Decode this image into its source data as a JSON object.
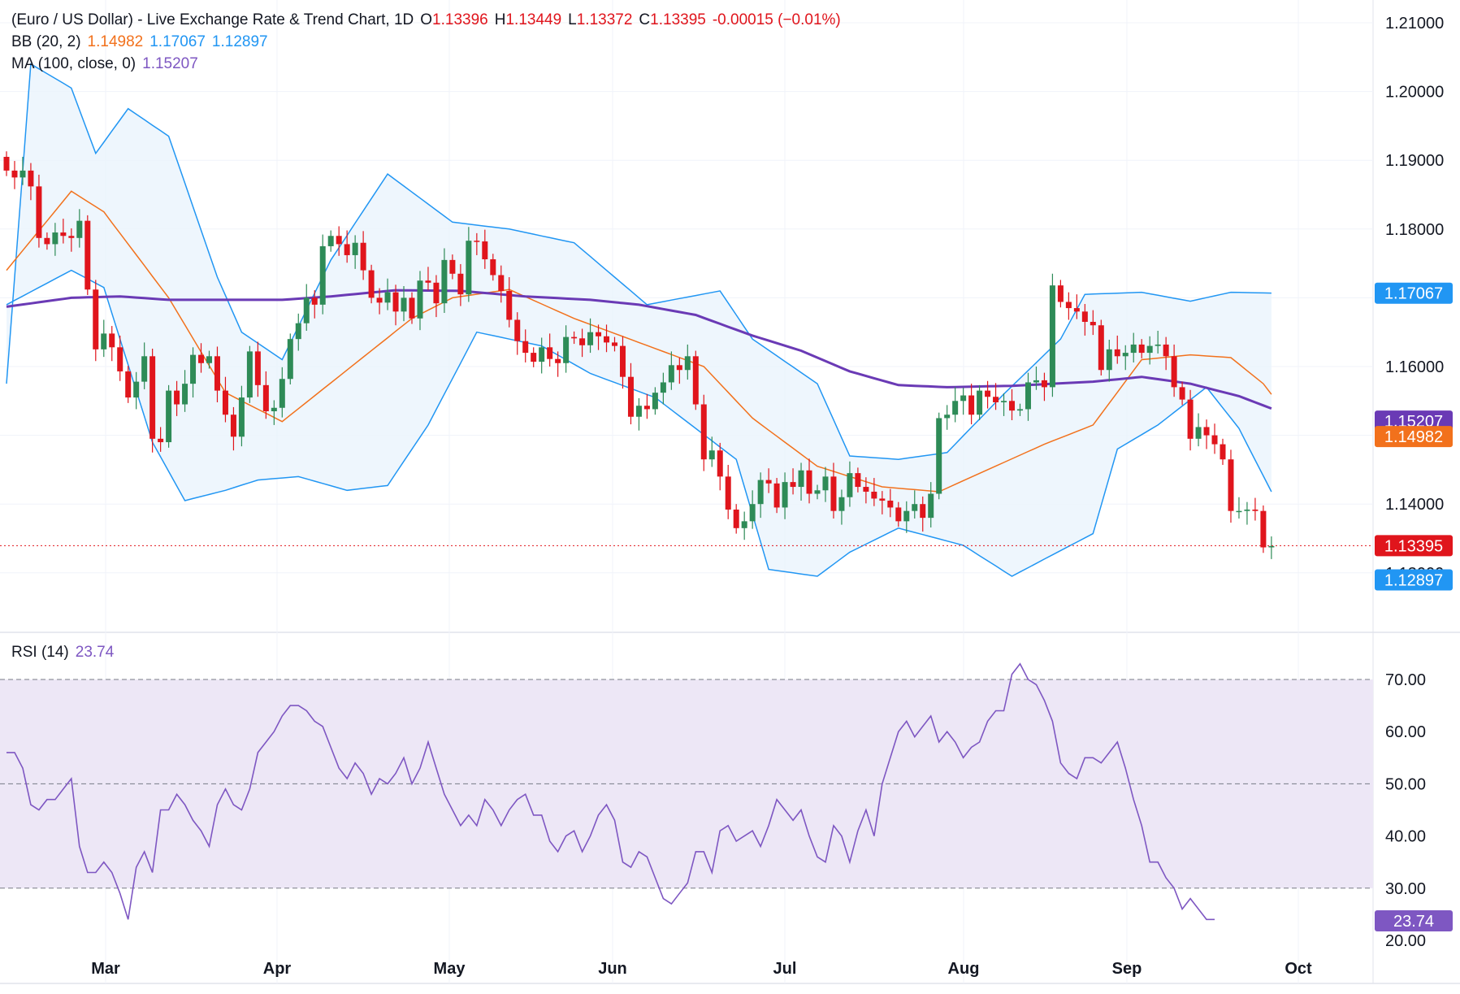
{
  "header": {
    "title": "(Euro / US Dollar) - Live Exchange Rate & Trend Chart, 1D",
    "open_label": "O",
    "open": "1.13396",
    "high_label": "H",
    "high": "1.13449",
    "low_label": "L",
    "low": "1.13372",
    "close_label": "C",
    "close": "1.13395",
    "change": "-0.00015 (−0.01%)"
  },
  "bb_legend": {
    "label": "BB (20, 2)",
    "basis": "1.14982",
    "upper": "1.17067",
    "lower": "1.12897"
  },
  "ma_legend": {
    "label": "MA (100, close, 0)",
    "value": "1.15207"
  },
  "rsi_legend": {
    "label": "RSI (14)",
    "value": "23.74"
  },
  "price_tags": {
    "upper": "1.17067",
    "ma": "1.15207",
    "basis": "1.14982",
    "last": "1.13395",
    "lower": "1.12897",
    "rsi": "23.74"
  },
  "colors": {
    "up": "#2e8b57",
    "down": "#e0151c",
    "bb_basis": "#f2711c",
    "bb_band": "#2196f3",
    "bb_fill": "#eaf4fc",
    "ma": "#6a3ab5",
    "rsi_line": "#7e57c2",
    "rsi_band": "#ede7f6"
  },
  "chart_data": [
    {
      "type": "candlestick",
      "title": "(Euro / US Dollar) - Live Exchange Rate & Trend Chart, 1D",
      "ylim": [
        1.119,
        1.212
      ],
      "yticks": [
        "1.21000",
        "1.20000",
        "1.19000",
        "1.18000",
        "1.17000",
        "1.16000",
        "1.15000",
        "1.14000",
        "1.13000"
      ],
      "xticks": [
        "Mar",
        "Apr",
        "May",
        "Jun",
        "Jul",
        "Aug",
        "Sep",
        "Oct"
      ],
      "grid": true,
      "closes": [
        1.1885,
        1.1875,
        1.1885,
        1.1862,
        1.1787,
        1.1778,
        1.1795,
        1.179,
        1.1787,
        1.1812,
        1.1712,
        1.1625,
        1.1648,
        1.1628,
        1.1593,
        1.1555,
        1.1578,
        1.1615,
        1.1495,
        1.149,
        1.1565,
        1.1545,
        1.1575,
        1.1617,
        1.1605,
        1.1615,
        1.1565,
        1.153,
        1.1498,
        1.1555,
        1.1622,
        1.1573,
        1.1535,
        1.154,
        1.1582,
        1.164,
        1.1663,
        1.17,
        1.169,
        1.1775,
        1.179,
        1.1778,
        1.1762,
        1.178,
        1.174,
        1.17,
        1.1693,
        1.1708,
        1.168,
        1.17,
        1.167,
        1.1725,
        1.1722,
        1.1692,
        1.1755,
        1.1735,
        1.1705,
        1.1783,
        1.1782,
        1.1756,
        1.1733,
        1.171,
        1.1668,
        1.1637,
        1.162,
        1.1607,
        1.1628,
        1.1611,
        1.1605,
        1.1643,
        1.1641,
        1.1631,
        1.165,
        1.1644,
        1.1635,
        1.163,
        1.1585,
        1.1527,
        1.1543,
        1.1538,
        1.1562,
        1.1577,
        1.1602,
        1.1595,
        1.1615,
        1.1545,
        1.1465,
        1.1478,
        1.144,
        1.1392,
        1.1365,
        1.1375,
        1.14,
        1.1435,
        1.143,
        1.1395,
        1.1432,
        1.1425,
        1.1449,
        1.1415,
        1.142,
        1.144,
        1.139,
        1.141,
        1.1445,
        1.1425,
        1.1418,
        1.1408,
        1.1405,
        1.1395,
        1.1375,
        1.139,
        1.14,
        1.138,
        1.1415,
        1.1525,
        1.153,
        1.155,
        1.1558,
        1.153,
        1.1565,
        1.1556,
        1.1548,
        1.155,
        1.1536,
        1.1538,
        1.1577,
        1.158,
        1.157,
        1.1718,
        1.1694,
        1.1685,
        1.168,
        1.1665,
        1.166,
        1.1595,
        1.1625,
        1.1615,
        1.162,
        1.1632,
        1.162,
        1.163,
        1.1632,
        1.1615,
        1.157,
        1.1552,
        1.1495,
        1.1512,
        1.15,
        1.1487,
        1.1465,
        1.139,
        1.139,
        1.1392,
        1.139,
        1.1337,
        1.1339
      ],
      "basis": [
        [
          0,
          1.174
        ],
        [
          8,
          1.1855
        ],
        [
          12,
          1.1825
        ],
        [
          20,
          1.17
        ],
        [
          27,
          1.1562
        ],
        [
          34,
          1.152
        ],
        [
          42,
          1.1595
        ],
        [
          50,
          1.167
        ],
        [
          55,
          1.17
        ],
        [
          62,
          1.1712
        ],
        [
          70,
          1.167
        ],
        [
          78,
          1.1635
        ],
        [
          86,
          1.16
        ],
        [
          92,
          1.1525
        ],
        [
          100,
          1.1455
        ],
        [
          108,
          1.1425
        ],
        [
          115,
          1.1418
        ],
        [
          121,
          1.145
        ],
        [
          128,
          1.1487
        ],
        [
          134,
          1.1515
        ],
        [
          140,
          1.161
        ],
        [
          146,
          1.1617
        ],
        [
          151,
          1.1613
        ],
        [
          155,
          1.1575
        ],
        [
          160,
          1.1498
        ]
      ],
      "upper": [
        [
          0,
          1.1575
        ],
        [
          3,
          1.204
        ],
        [
          8,
          1.2005
        ],
        [
          11,
          1.191
        ],
        [
          15,
          1.1975
        ],
        [
          20,
          1.1935
        ],
        [
          26,
          1.173
        ],
        [
          29,
          1.165
        ],
        [
          34,
          1.161
        ],
        [
          40,
          1.1755
        ],
        [
          47,
          1.188
        ],
        [
          55,
          1.181
        ],
        [
          62,
          1.18
        ],
        [
          70,
          1.178
        ],
        [
          79,
          1.169
        ],
        [
          88,
          1.171
        ],
        [
          92,
          1.164
        ],
        [
          100,
          1.1575
        ],
        [
          104,
          1.147
        ],
        [
          110,
          1.1465
        ],
        [
          116,
          1.1475
        ],
        [
          123,
          1.156
        ],
        [
          130,
          1.164
        ],
        [
          133,
          1.1705
        ],
        [
          140,
          1.1708
        ],
        [
          146,
          1.1695
        ],
        [
          151,
          1.1708
        ],
        [
          160,
          1.1706
        ]
      ],
      "lower": [
        [
          0,
          1.169
        ],
        [
          8,
          1.174
        ],
        [
          12,
          1.1715
        ],
        [
          18,
          1.149
        ],
        [
          22,
          1.1405
        ],
        [
          27,
          1.142
        ],
        [
          31,
          1.1435
        ],
        [
          36,
          1.144
        ],
        [
          42,
          1.142
        ],
        [
          47,
          1.1427
        ],
        [
          52,
          1.1515
        ],
        [
          58,
          1.165
        ],
        [
          66,
          1.163
        ],
        [
          72,
          1.159
        ],
        [
          80,
          1.1555
        ],
        [
          90,
          1.1465
        ],
        [
          94,
          1.1305
        ],
        [
          100,
          1.1295
        ],
        [
          104,
          1.133
        ],
        [
          110,
          1.1365
        ],
        [
          118,
          1.134
        ],
        [
          124,
          1.1295
        ],
        [
          128,
          1.132
        ],
        [
          134,
          1.1357
        ],
        [
          137,
          1.148
        ],
        [
          142,
          1.1515
        ],
        [
          148,
          1.157
        ],
        [
          152,
          1.151
        ],
        [
          157,
          1.1395
        ],
        [
          160,
          1.129
        ]
      ],
      "ma100": [
        [
          0,
          1.1687
        ],
        [
          8,
          1.17
        ],
        [
          14,
          1.1702
        ],
        [
          20,
          1.1697
        ],
        [
          34,
          1.1697
        ],
        [
          40,
          1.1702
        ],
        [
          48,
          1.1711
        ],
        [
          56,
          1.171
        ],
        [
          64,
          1.1702
        ],
        [
          72,
          1.1697
        ],
        [
          78,
          1.169
        ],
        [
          85,
          1.1675
        ],
        [
          92,
          1.1645
        ],
        [
          98,
          1.1623
        ],
        [
          104,
          1.1593
        ],
        [
          110,
          1.1573
        ],
        [
          116,
          1.157
        ],
        [
          124,
          1.1572
        ],
        [
          134,
          1.1578
        ],
        [
          140,
          1.1585
        ],
        [
          146,
          1.1575
        ],
        [
          152,
          1.1557
        ],
        [
          160,
          1.1521
        ]
      ]
    },
    {
      "type": "line",
      "title": "RSI (14)",
      "ylim": [
        20,
        74
      ],
      "yticks": [
        "70.00",
        "60.00",
        "50.00",
        "40.00",
        "30.00",
        "20.00"
      ],
      "levels": [
        70,
        50,
        30
      ],
      "values": [
        56,
        56,
        53,
        46,
        45,
        47,
        47,
        49,
        51,
        38,
        33,
        33,
        35,
        33,
        29,
        24,
        34,
        37,
        33,
        45,
        45,
        48,
        46,
        43,
        41,
        38,
        46,
        49,
        46,
        45,
        49,
        56,
        58,
        60,
        63,
        65,
        65,
        64,
        62,
        61,
        57,
        53,
        51,
        54,
        52,
        48,
        51,
        50,
        52,
        55,
        50,
        53,
        58,
        53,
        48,
        45,
        42,
        44,
        42,
        47,
        45,
        42,
        45,
        47,
        48,
        44,
        44,
        39,
        37,
        40,
        41,
        37,
        40,
        44,
        46,
        43,
        35,
        34,
        37,
        36,
        32,
        28,
        27,
        29,
        31,
        37,
        37,
        33,
        41,
        42,
        39,
        40,
        41,
        38,
        42,
        47,
        45,
        43,
        45,
        40,
        36,
        35,
        42,
        40,
        35,
        41,
        45,
        40,
        50,
        55,
        60,
        62,
        59,
        61,
        63,
        58,
        60,
        58,
        55,
        57,
        58,
        62,
        64,
        64,
        71,
        73,
        70,
        69,
        66,
        62,
        54,
        52,
        51,
        55,
        55,
        54,
        56,
        58,
        53,
        47,
        42,
        35,
        35,
        32,
        30,
        26,
        28,
        26,
        24,
        24
      ],
      "last": 23.74
    }
  ]
}
